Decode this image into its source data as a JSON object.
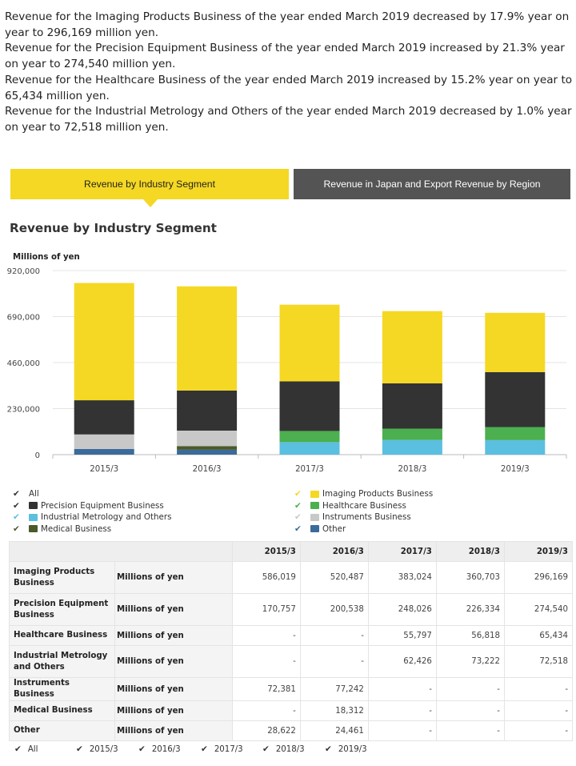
{
  "intro": [
    "Revenue for the Imaging Products Business of the year ended March 2019 decreased by 17.9% year on year to 296,169 million yen.",
    "Revenue for the Precision Equipment Business of the year ended March 2019 increased by 21.3% year on year to 274,540 million yen.",
    "Revenue for the Healthcare Business of the year ended March 2019 increased by 15.2% year on year to 65,434 million yen.",
    "Revenue for the Industrial Metrology and Others of the year ended March 2019 decreased by 1.0% year on year to 72,518 million yen."
  ],
  "tabs": {
    "active_label": "Revenue by Industry Segment",
    "inactive_label": "Revenue in Japan and Export Revenue by Region"
  },
  "section_title": "Revenue by Industry Segment",
  "legend": {
    "all_label": "All",
    "check_colors": {
      "all": "#333333",
      "imaging": "#f5d823",
      "precision": "#333333",
      "healthcare": "#4caf50",
      "industrial": "#5bbfe0",
      "instruments": "#c8c8c8",
      "medical": "#4a5a2a",
      "other": "#3a6b9a"
    }
  },
  "chart_data": {
    "type": "bar",
    "stacked": true,
    "ylabel": "Millions of yen",
    "ylim": [
      0,
      920000
    ],
    "yticks": [
      0,
      230000,
      460000,
      690000,
      920000
    ],
    "ytick_labels": [
      "0",
      "230,000",
      "460,000",
      "690,000",
      "920,000"
    ],
    "grid": true,
    "legend_position": "bottom",
    "categories": [
      "2015/3",
      "2016/3",
      "2017/3",
      "2018/3",
      "2019/3"
    ],
    "series": [
      {
        "key": "other",
        "name": "Other",
        "color": "#3a6b9a",
        "values": [
          28622,
          24461,
          0,
          0,
          0
        ]
      },
      {
        "key": "medical",
        "name": "Medical Business",
        "color": "#4a5a2a",
        "values": [
          0,
          18312,
          0,
          0,
          0
        ]
      },
      {
        "key": "instruments",
        "name": "Instruments Business",
        "color": "#c8c8c8",
        "values": [
          72381,
          77242,
          0,
          0,
          0
        ]
      },
      {
        "key": "industrial",
        "name": "Industrial Metrology and Others",
        "color": "#5bbfe0",
        "values": [
          0,
          0,
          62426,
          73222,
          72518
        ]
      },
      {
        "key": "healthcare",
        "name": "Healthcare Business",
        "color": "#4caf50",
        "values": [
          0,
          0,
          55797,
          56818,
          65434
        ]
      },
      {
        "key": "precision",
        "name": "Precision Equipment Business",
        "color": "#333333",
        "values": [
          170757,
          200538,
          248026,
          226334,
          274540
        ]
      },
      {
        "key": "imaging",
        "name": "Imaging Products Business",
        "color": "#f5d823",
        "values": [
          586019,
          520487,
          383024,
          360703,
          296169
        ]
      }
    ]
  },
  "table": {
    "years": [
      "2015/3",
      "2016/3",
      "2017/3",
      "2018/3",
      "2019/3"
    ],
    "rows": [
      {
        "label": "Imaging Products Business",
        "unit": "Millions of yen",
        "values": [
          "586,019",
          "520,487",
          "383,024",
          "360,703",
          "296,169"
        ]
      },
      {
        "label": "Precision Equipment Business",
        "unit": "Millions of yen",
        "values": [
          "170,757",
          "200,538",
          "248,026",
          "226,334",
          "274,540"
        ]
      },
      {
        "label": "Healthcare Business",
        "unit": "Millions of yen",
        "values": [
          "-",
          "-",
          "55,797",
          "56,818",
          "65,434"
        ]
      },
      {
        "label": "Industrial Metrology and Others",
        "unit": "Millions of yen",
        "values": [
          "-",
          "-",
          "62,426",
          "73,222",
          "72,518"
        ]
      },
      {
        "label": "Instruments Business",
        "unit": "Millions of yen",
        "values": [
          "72,381",
          "77,242",
          "-",
          "-",
          "-"
        ]
      },
      {
        "label": "Medical Business",
        "unit": "Millions of yen",
        "values": [
          "-",
          "18,312",
          "-",
          "-",
          "-"
        ]
      },
      {
        "label": "Other",
        "unit": "Millions of yen",
        "values": [
          "28,622",
          "24,461",
          "-",
          "-",
          "-"
        ]
      }
    ]
  },
  "column_toggles": [
    "All",
    "2015/3",
    "2016/3",
    "2017/3",
    "2018/3",
    "2019/3"
  ]
}
